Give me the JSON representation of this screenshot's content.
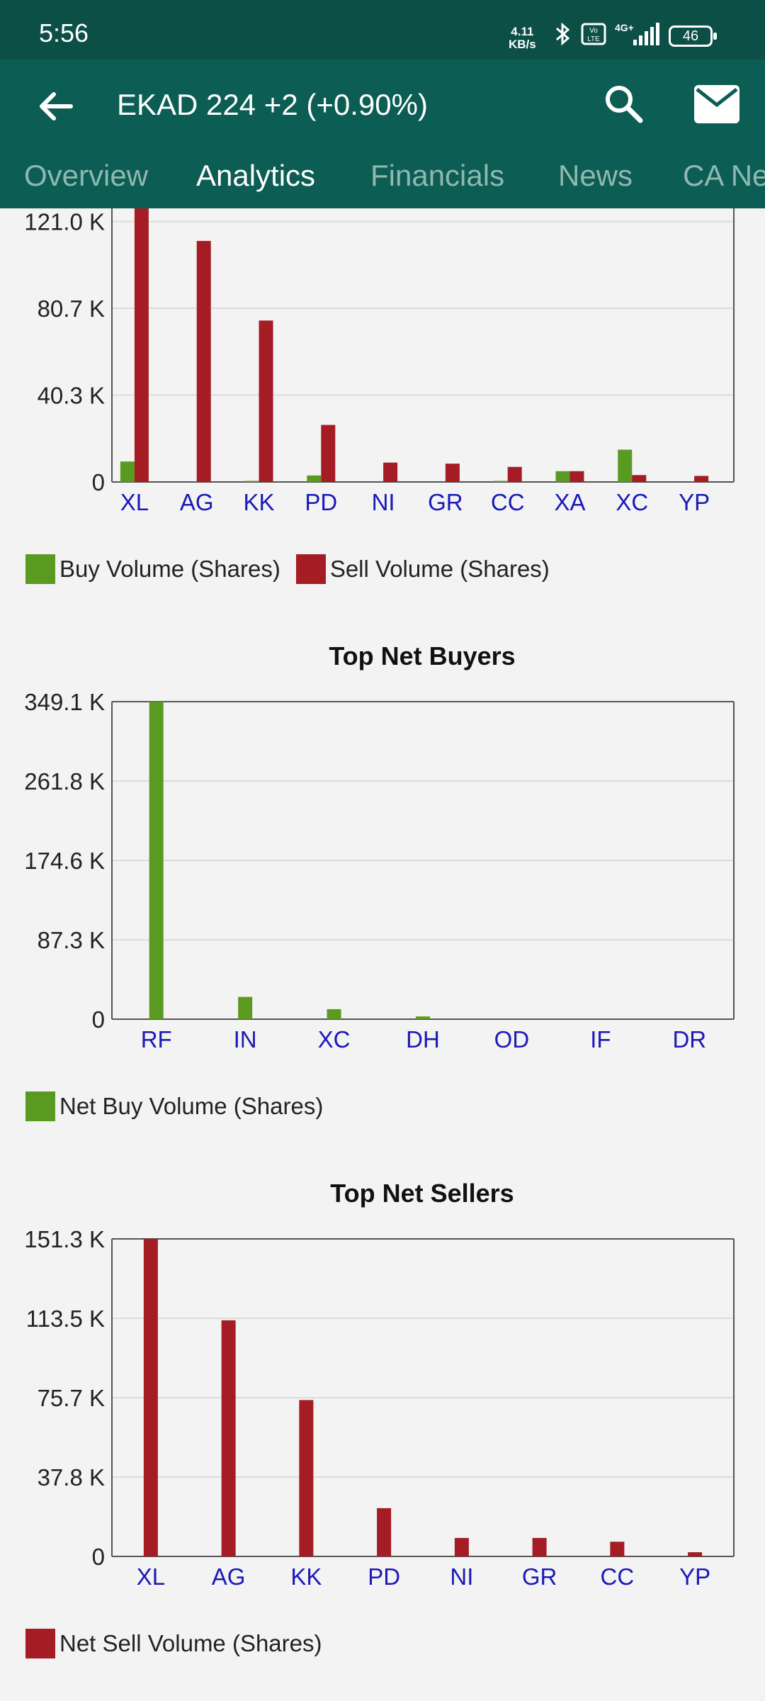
{
  "status": {
    "time": "5:56",
    "speed_value": "4.11",
    "speed_unit": "KB/s",
    "battery": "46"
  },
  "toolbar": {
    "title": "EKAD  224 +2 (+0.90%)"
  },
  "tabs": [
    "Overview",
    "Analytics",
    "Financials",
    "News",
    "CA Ne"
  ],
  "active_tab": "Analytics",
  "colors": {
    "buy": "#5b9a21",
    "sell": "#a51c25",
    "axis_label": "#1a1ab8",
    "header": "#0c5d53"
  },
  "chart_data": [
    {
      "type": "bar",
      "title": "",
      "categories": [
        "XL",
        "AG",
        "KK",
        "PD",
        "NI",
        "GR",
        "CC",
        "XA",
        "XC",
        "YP"
      ],
      "series": [
        {
          "name": "Buy Volume (Shares)",
          "values": [
            9500,
            0,
            500,
            3000,
            0,
            0,
            500,
            5000,
            15000,
            0
          ]
        },
        {
          "name": "Sell Volume (Shares)",
          "values": [
            140000,
            112000,
            75000,
            26500,
            9000,
            8500,
            7000,
            5000,
            3200,
            2800
          ]
        }
      ],
      "yticks": [
        "0",
        "40.3 K",
        "80.7 K",
        "121.0 K"
      ],
      "ylim": [
        0,
        137000
      ],
      "legend_position": "bottom"
    },
    {
      "type": "bar",
      "title": "Top Net Buyers",
      "categories": [
        "RF",
        "IN",
        "XC",
        "DH",
        "OD",
        "IF",
        "DR"
      ],
      "series": [
        {
          "name": "Net Buy Volume (Shares)",
          "values": [
            349100,
            24500,
            11000,
            3000,
            0,
            0,
            0
          ]
        }
      ],
      "yticks": [
        "0",
        "87.3 K",
        "174.6 K",
        "261.8 K",
        "349.1 K"
      ],
      "ylim": [
        0,
        349100
      ],
      "legend_position": "bottom"
    },
    {
      "type": "bar",
      "title": "Top Net Sellers",
      "categories": [
        "XL",
        "AG",
        "KK",
        "PD",
        "NI",
        "GR",
        "CC",
        "YP"
      ],
      "series": [
        {
          "name": "Net Sell Volume (Shares)",
          "values": [
            151300,
            112500,
            74500,
            23000,
            8800,
            8800,
            7000,
            2000
          ]
        }
      ],
      "yticks": [
        "0",
        "37.8 K",
        "75.7 K",
        "113.5 K",
        "151.3 K"
      ],
      "ylim": [
        0,
        151300
      ],
      "legend_position": "bottom"
    }
  ]
}
